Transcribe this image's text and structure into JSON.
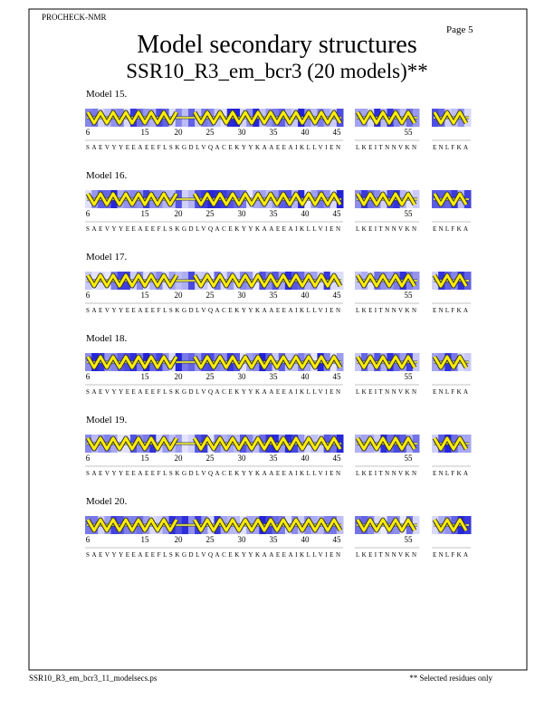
{
  "header": {
    "program": "PROCHECK-NMR",
    "page": "Page  5",
    "title": "Model secondary structures",
    "subtitle": "SSR10_R3_em_bcr3 (20 models)**"
  },
  "models": [
    {
      "label": "Model 15."
    },
    {
      "label": "Model 16."
    },
    {
      "label": "Model 17."
    },
    {
      "label": "Model 18."
    },
    {
      "label": "Model 19."
    },
    {
      "label": "Model 20."
    }
  ],
  "ruler": {
    "ticks": [
      6,
      15,
      20,
      25,
      30,
      35,
      40,
      45,
      55
    ],
    "segments": [
      "SAEVYYEEAEEFLSKGDLVQACEKYYKAAEEAIKLLVIEN",
      "LKEITNNVKN",
      "ENLFKA"
    ]
  },
  "footer": {
    "file": "SSR10_R3_em_bcr3_11_modelsecs.ps",
    "note": "** Selected residues only"
  }
}
